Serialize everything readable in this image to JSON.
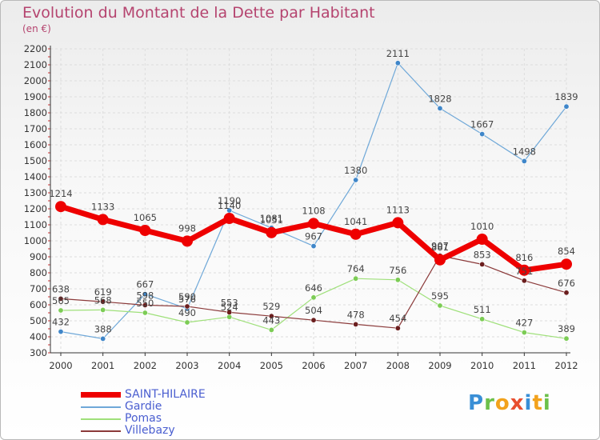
{
  "title": "Evolution du Montant de la Dette par Habitant",
  "subtitle": "(en €)",
  "logo": {
    "letters": [
      "P",
      "r",
      "o",
      "x",
      "i",
      "t",
      "i"
    ]
  },
  "colors": {
    "grid": "#dddddd",
    "axis": "#333333",
    "tick_text": "#333333",
    "value_text": "#444444"
  },
  "chart_data": {
    "type": "line",
    "title": "Evolution du Montant de la Dette par Habitant",
    "subtitle": "(en €)",
    "x": [
      "2000",
      "2001",
      "2002",
      "2003",
      "2004",
      "2005",
      "2006",
      "2007",
      "2008",
      "2009",
      "2010",
      "2011",
      "2012"
    ],
    "ylim": [
      300,
      2200
    ],
    "yticks": [
      300,
      400,
      500,
      600,
      700,
      800,
      900,
      1000,
      1100,
      1200,
      1300,
      1400,
      1500,
      1600,
      1700,
      1800,
      1900,
      2000,
      2100,
      2200
    ],
    "grid": true,
    "legend": "bottom-left",
    "series": [
      {
        "name": "SAINT-HILAIRE",
        "color": "#ee0000",
        "width": 7,
        "marker": 7,
        "values": [
          1214,
          1133,
          1065,
          998,
          1140,
          1051,
          1108,
          1041,
          1113,
          881,
          1010,
          816,
          854
        ]
      },
      {
        "name": "Gardie",
        "color": "#6fa8d8",
        "marker_color": "#3f86c9",
        "width": 1.2,
        "marker": 3.2,
        "values": [
          432,
          388,
          667,
          576,
          1190,
          1081,
          967,
          1380,
          2111,
          1828,
          1667,
          1498,
          1839
        ]
      },
      {
        "name": "Pomas",
        "color": "#9fe07a",
        "marker_color": "#7ccc55",
        "width": 1.2,
        "marker": 3.2,
        "values": [
          565,
          568,
          550,
          490,
          524,
          443,
          646,
          764,
          756,
          595,
          511,
          427,
          389
        ]
      },
      {
        "name": "Villebazy",
        "color": "#8b3a3a",
        "marker_color": "#6b1e1e",
        "width": 1.2,
        "marker": 3.2,
        "values": [
          638,
          619,
          598,
          590,
          553,
          529,
          504,
          478,
          454,
          907,
          853,
          751,
          676
        ]
      }
    ]
  }
}
